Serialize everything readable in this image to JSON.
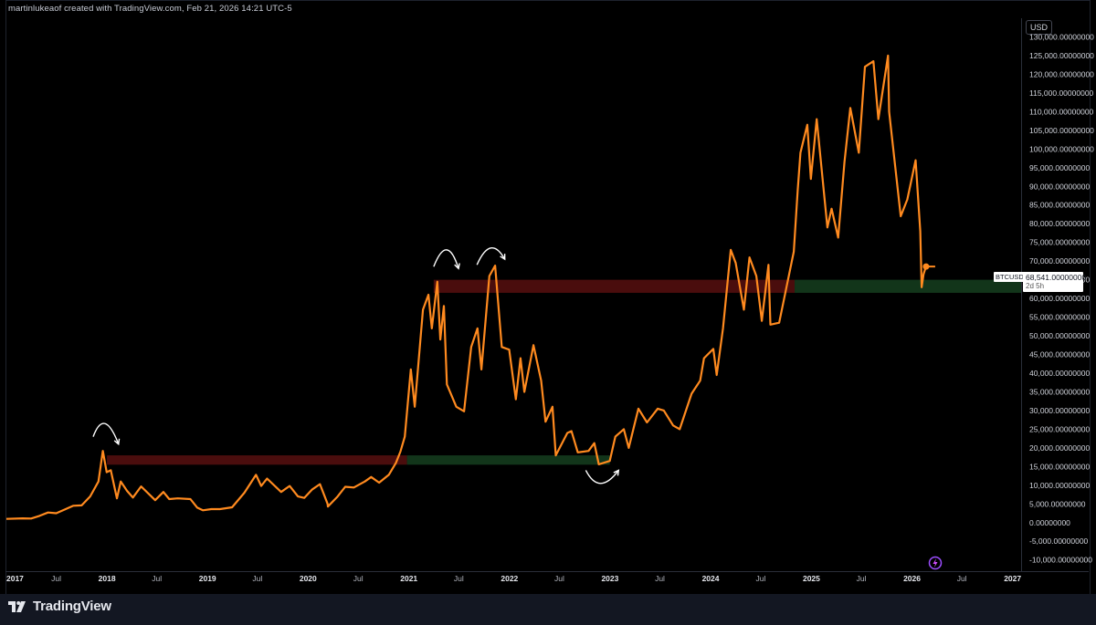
{
  "header": {
    "credit": "martinlukeaof created with TradingView.com, Feb 21, 2026 14:21 UTC-5"
  },
  "price_scale": {
    "currency": "USD"
  },
  "footer": {
    "brand": "TradingView",
    "logo_icon": "tradingview-logo-icon"
  },
  "last_price": {
    "symbol": "BTCUSD",
    "price": "68,541.00000000",
    "countdown": "2d 5h"
  },
  "colors": {
    "background": "#000000",
    "line": "#ff8a1f",
    "resistance_zone": "#4a0d0d",
    "support_zone": "#12351a",
    "arrow": "#ffffff"
  },
  "chart_data": {
    "type": "line",
    "title": "",
    "xlabel": "",
    "ylabel": "",
    "ylim": [
      -13000,
      135000
    ],
    "xlim": [
      "2017-01-01",
      "2027-02-01"
    ],
    "y_ticks": [
      130000,
      125000,
      120000,
      115000,
      110000,
      105000,
      100000,
      95000,
      90000,
      85000,
      80000,
      75000,
      70000,
      65000,
      60000,
      55000,
      50000,
      45000,
      40000,
      35000,
      30000,
      25000,
      20000,
      15000,
      10000,
      5000,
      0,
      -5000,
      -10000
    ],
    "y_tick_labels": [
      "130,000.00000000",
      "125,000.00000000",
      "120,000.00000000",
      "115,000.00000000",
      "110,000.00000000",
      "105,000.00000000",
      "100,000.00000000",
      "95,000.00000000",
      "90,000.00000000",
      "85,000.00000000",
      "80,000.00000000",
      "75,000.00000000",
      "70,000.00000000",
      "65,000.00000000",
      "60,000.00000000",
      "55,000.00000000",
      "50,000.00000000",
      "45,000.00000000",
      "40,000.00000000",
      "35,000.00000000",
      "30,000.00000000",
      "25,000.00000000",
      "20,000.00000000",
      "15,000.00000000",
      "10,000.00000000",
      "5,000.00000000",
      "0.00000000",
      "-5,000.00000000",
      "-10,000.00000000"
    ],
    "x_ticks": [
      {
        "date": "2017-01-01",
        "label": "2017"
      },
      {
        "date": "2017-07-01",
        "label": "Jul"
      },
      {
        "date": "2018-01-01",
        "label": "2018"
      },
      {
        "date": "2018-07-01",
        "label": "Jul"
      },
      {
        "date": "2019-01-01",
        "label": "2019"
      },
      {
        "date": "2019-07-01",
        "label": "Jul"
      },
      {
        "date": "2020-01-01",
        "label": "2020"
      },
      {
        "date": "2020-07-01",
        "label": "Jul"
      },
      {
        "date": "2021-01-01",
        "label": "2021"
      },
      {
        "date": "2021-07-01",
        "label": "Jul"
      },
      {
        "date": "2022-01-01",
        "label": "2022"
      },
      {
        "date": "2022-07-01",
        "label": "Jul"
      },
      {
        "date": "2023-01-01",
        "label": "2023"
      },
      {
        "date": "2023-07-01",
        "label": "Jul"
      },
      {
        "date": "2024-01-01",
        "label": "2024"
      },
      {
        "date": "2024-07-01",
        "label": "Jul"
      },
      {
        "date": "2025-01-01",
        "label": "2025"
      },
      {
        "date": "2025-07-01",
        "label": "Jul"
      },
      {
        "date": "2026-01-01",
        "label": "2026"
      },
      {
        "date": "2026-07-01",
        "label": "Jul"
      },
      {
        "date": "2027-01-01",
        "label": "2027"
      }
    ],
    "series": [
      {
        "symbol": "BTCUSD",
        "points": [
          [
            "2017-01-01",
            1000
          ],
          [
            "2017-03-01",
            1150
          ],
          [
            "2017-04-01",
            1100
          ],
          [
            "2017-05-01",
            1800
          ],
          [
            "2017-06-01",
            2700
          ],
          [
            "2017-07-01",
            2500
          ],
          [
            "2017-08-01",
            3500
          ],
          [
            "2017-09-01",
            4500
          ],
          [
            "2017-10-01",
            4600
          ],
          [
            "2017-11-01",
            7000
          ],
          [
            "2017-12-01",
            11000
          ],
          [
            "2017-12-17",
            19200
          ],
          [
            "2017-12-31",
            13500
          ],
          [
            "2018-01-15",
            14000
          ],
          [
            "2018-02-06",
            6500
          ],
          [
            "2018-02-20",
            11000
          ],
          [
            "2018-03-15",
            8500
          ],
          [
            "2018-04-05",
            6700
          ],
          [
            "2018-05-05",
            9700
          ],
          [
            "2018-06-25",
            6000
          ],
          [
            "2018-07-25",
            8200
          ],
          [
            "2018-08-15",
            6300
          ],
          [
            "2018-09-15",
            6500
          ],
          [
            "2018-10-31",
            6300
          ],
          [
            "2018-11-25",
            4000
          ],
          [
            "2018-12-15",
            3300
          ],
          [
            "2019-01-15",
            3600
          ],
          [
            "2019-02-15",
            3600
          ],
          [
            "2019-03-31",
            4100
          ],
          [
            "2019-05-15",
            8000
          ],
          [
            "2019-06-26",
            12800
          ],
          [
            "2019-07-15",
            9800
          ],
          [
            "2019-08-05",
            11800
          ],
          [
            "2019-09-25",
            8200
          ],
          [
            "2019-10-26",
            9800
          ],
          [
            "2019-11-25",
            7000
          ],
          [
            "2019-12-18",
            6600
          ],
          [
            "2020-01-15",
            8800
          ],
          [
            "2020-02-13",
            10300
          ],
          [
            "2020-03-12",
            5000
          ],
          [
            "2020-03-13",
            4300
          ],
          [
            "2020-04-15",
            6800
          ],
          [
            "2020-05-15",
            9600
          ],
          [
            "2020-06-15",
            9400
          ],
          [
            "2020-07-25",
            11000
          ],
          [
            "2020-08-17",
            12200
          ],
          [
            "2020-09-15",
            10700
          ],
          [
            "2020-10-20",
            12800
          ],
          [
            "2020-11-15",
            16000
          ],
          [
            "2020-12-01",
            19000
          ],
          [
            "2020-12-17",
            23000
          ],
          [
            "2021-01-08",
            41000
          ],
          [
            "2021-01-22",
            31000
          ],
          [
            "2021-02-21",
            57000
          ],
          [
            "2021-03-13",
            61000
          ],
          [
            "2021-03-25",
            52000
          ],
          [
            "2021-04-14",
            64500
          ],
          [
            "2021-04-25",
            49000
          ],
          [
            "2021-05-08",
            58000
          ],
          [
            "2021-05-19",
            37000
          ],
          [
            "2021-06-22",
            31000
          ],
          [
            "2021-07-20",
            29800
          ],
          [
            "2021-08-15",
            47000
          ],
          [
            "2021-09-07",
            52000
          ],
          [
            "2021-09-21",
            41000
          ],
          [
            "2021-10-20",
            66000
          ],
          [
            "2021-11-10",
            68800
          ],
          [
            "2021-12-04",
            47000
          ],
          [
            "2021-12-31",
            46300
          ],
          [
            "2022-01-24",
            33000
          ],
          [
            "2022-02-10",
            44000
          ],
          [
            "2022-02-24",
            35000
          ],
          [
            "2022-03-29",
            47500
          ],
          [
            "2022-04-26",
            38000
          ],
          [
            "2022-05-12",
            27000
          ],
          [
            "2022-06-06",
            31000
          ],
          [
            "2022-06-18",
            18000
          ],
          [
            "2022-07-30",
            24000
          ],
          [
            "2022-08-14",
            24500
          ],
          [
            "2022-09-06",
            18800
          ],
          [
            "2022-10-15",
            19200
          ],
          [
            "2022-11-05",
            21300
          ],
          [
            "2022-11-21",
            15600
          ],
          [
            "2022-12-31",
            16500
          ],
          [
            "2023-01-20",
            23000
          ],
          [
            "2023-02-20",
            25000
          ],
          [
            "2023-03-10",
            20000
          ],
          [
            "2023-04-14",
            30500
          ],
          [
            "2023-05-15",
            26800
          ],
          [
            "2023-06-23",
            30500
          ],
          [
            "2023-07-15",
            30000
          ],
          [
            "2023-08-18",
            26000
          ],
          [
            "2023-09-11",
            25000
          ],
          [
            "2023-10-24",
            34500
          ],
          [
            "2023-11-24",
            38000
          ],
          [
            "2023-12-08",
            44000
          ],
          [
            "2024-01-11",
            46500
          ],
          [
            "2024-01-23",
            39500
          ],
          [
            "2024-02-15",
            52000
          ],
          [
            "2024-03-14",
            73000
          ],
          [
            "2024-04-01",
            69500
          ],
          [
            "2024-05-01",
            57000
          ],
          [
            "2024-05-21",
            71000
          ],
          [
            "2024-06-15",
            66000
          ],
          [
            "2024-07-05",
            54000
          ],
          [
            "2024-07-29",
            69000
          ],
          [
            "2024-08-05",
            53000
          ],
          [
            "2024-09-06",
            53500
          ],
          [
            "2024-10-29",
            72500
          ],
          [
            "2024-11-12",
            89000
          ],
          [
            "2024-11-22",
            99000
          ],
          [
            "2024-12-17",
            106500
          ],
          [
            "2024-12-30",
            92000
          ],
          [
            "2025-01-20",
            108000
          ],
          [
            "2025-02-28",
            79000
          ],
          [
            "2025-03-15",
            84000
          ],
          [
            "2025-04-08",
            76300
          ],
          [
            "2025-05-01",
            96500
          ],
          [
            "2025-05-22",
            111000
          ],
          [
            "2025-06-22",
            99000
          ],
          [
            "2025-07-14",
            122000
          ],
          [
            "2025-08-14",
            123500
          ],
          [
            "2025-09-01",
            108000
          ],
          [
            "2025-10-06",
            125000
          ],
          [
            "2025-10-10",
            110000
          ],
          [
            "2025-11-21",
            82000
          ],
          [
            "2025-12-15",
            86500
          ],
          [
            "2026-01-14",
            97000
          ],
          [
            "2026-01-31",
            78000
          ],
          [
            "2026-02-05",
            63000
          ],
          [
            "2026-02-12",
            66500
          ],
          [
            "2026-02-21",
            68541
          ]
        ]
      }
    ],
    "zones": [
      {
        "kind": "resistance",
        "from": "2018-01-01",
        "to": "2020-12-25",
        "low": 15500,
        "high": 18000
      },
      {
        "kind": "support",
        "from": "2020-12-25",
        "to": "2022-12-31",
        "low": 15500,
        "high": 18000
      },
      {
        "kind": "resistance",
        "from": "2021-04-01",
        "to": "2024-11-01",
        "low": 61500,
        "high": 65000
      },
      {
        "kind": "support",
        "from": "2024-11-01",
        "to": "2027-02-01",
        "low": 61500,
        "high": 65000
      }
    ],
    "annotations": [
      {
        "kind": "arc-arrow",
        "from": [
          "2017-11-12",
          23000
        ],
        "peak": [
          "2017-12-25",
          26500
        ],
        "to": [
          "2018-02-12",
          21000
        ]
      },
      {
        "kind": "arc-arrow",
        "from": [
          "2021-04-01",
          68500
        ],
        "peak": [
          "2021-05-18",
          73000
        ],
        "to": [
          "2021-06-30",
          68000
        ]
      },
      {
        "kind": "arc-arrow",
        "from": [
          "2021-09-05",
          69000
        ],
        "peak": [
          "2021-10-25",
          73500
        ],
        "to": [
          "2021-12-15",
          70500
        ]
      },
      {
        "kind": "arc-arrow",
        "from": [
          "2022-10-05",
          14000
        ],
        "peak": [
          "2022-11-28",
          10500
        ],
        "to": [
          "2023-02-01",
          14000
        ]
      }
    ]
  }
}
